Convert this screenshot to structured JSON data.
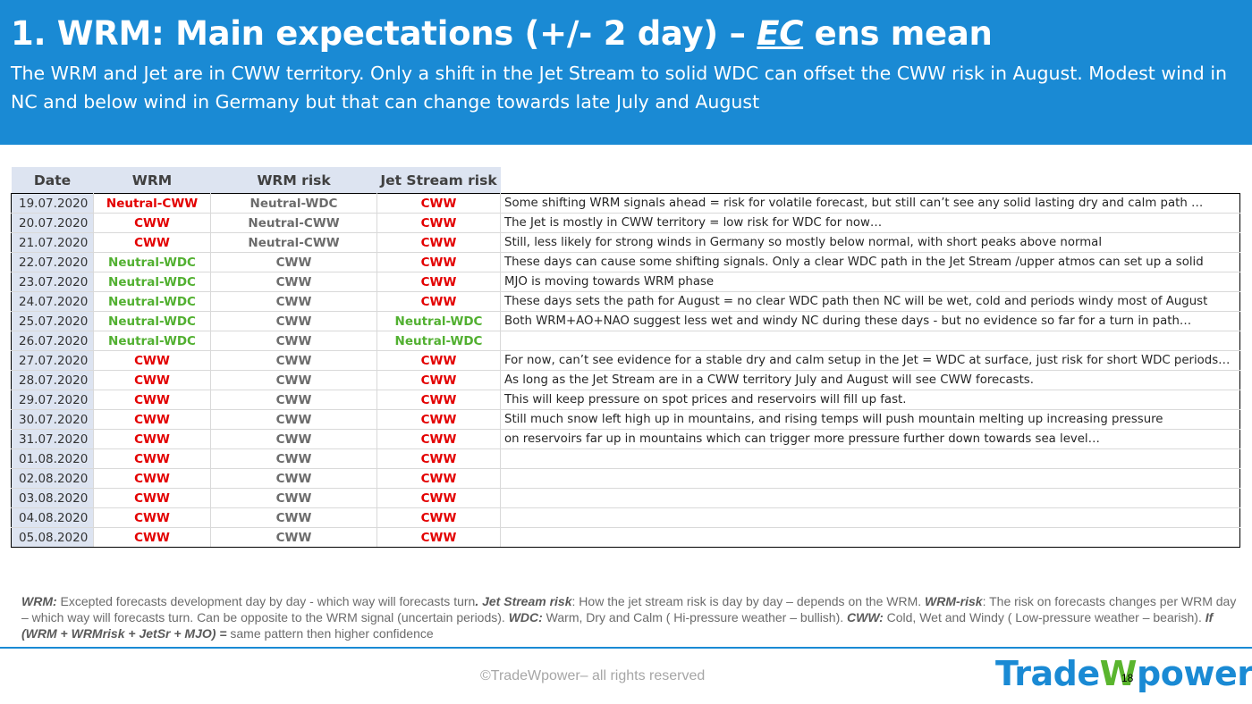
{
  "header": {
    "title_prefix": "1. WRM: Main expectations (+/- 2 day) – ",
    "title_ec": "EC",
    "title_suffix": " ens mean",
    "subtitle": "The WRM and Jet are in CWW territory. Only a shift in the Jet Stream to solid WDC can offset the CWW risk in August. Modest wind in NC and below wind in Germany but that can change towards late July and August"
  },
  "table": {
    "headers": [
      "Date",
      "WRM",
      "WRM risk",
      "Jet Stream risk"
    ],
    "rows": [
      {
        "date": "19.07.2020",
        "wrm": "Neutral-CWW",
        "wrm_c": "red",
        "risk": "Neutral-WDC",
        "risk_c": "gray",
        "jet": "CWW",
        "jet_c": "red",
        "comment": "Some shifting WRM signals ahead = risk for volatile forecast, but still can’t see any solid lasting dry and calm path …"
      },
      {
        "date": "20.07.2020",
        "wrm": "CWW",
        "wrm_c": "red",
        "risk": "Neutral-CWW",
        "risk_c": "gray",
        "jet": "CWW",
        "jet_c": "red",
        "comment": "The Jet is mostly in CWW territory = low risk for WDC for now…"
      },
      {
        "date": "21.07.2020",
        "wrm": "CWW",
        "wrm_c": "red",
        "risk": "Neutral-CWW",
        "risk_c": "gray",
        "jet": "CWW",
        "jet_c": "red",
        "comment": "Still, less likely for strong winds in Germany so mostly below normal, with short peaks above normal"
      },
      {
        "date": "22.07.2020",
        "wrm": "Neutral-WDC",
        "wrm_c": "green",
        "risk": "CWW",
        "risk_c": "gray",
        "jet": "CWW",
        "jet_c": "red",
        "comment": "These days can cause some shifting signals. Only a clear WDC path in the Jet Stream /upper atmos can set up a solid"
      },
      {
        "date": "23.07.2020",
        "wrm": "Neutral-WDC",
        "wrm_c": "green",
        "risk": "CWW",
        "risk_c": "gray",
        "jet": "CWW",
        "jet_c": "red",
        "comment": "MJO is moving towards WRM phase"
      },
      {
        "date": "24.07.2020",
        "wrm": "Neutral-WDC",
        "wrm_c": "green",
        "risk": "CWW",
        "risk_c": "gray",
        "jet": "CWW",
        "jet_c": "red",
        "comment": "These days sets the path for August = no clear WDC path then NC will be wet, cold and periods windy most of August"
      },
      {
        "date": "25.07.2020",
        "wrm": "Neutral-WDC",
        "wrm_c": "green",
        "risk": "CWW",
        "risk_c": "gray",
        "jet": "Neutral-WDC",
        "jet_c": "green",
        "comment": "Both WRM+AO+NAO suggest less wet and windy NC during these days - but no evidence so far for a turn in path…"
      },
      {
        "date": "26.07.2020",
        "wrm": "Neutral-WDC",
        "wrm_c": "green",
        "risk": "CWW",
        "risk_c": "gray",
        "jet": "Neutral-WDC",
        "jet_c": "green",
        "comment": ""
      },
      {
        "date": "27.07.2020",
        "wrm": "CWW",
        "wrm_c": "red",
        "risk": "CWW",
        "risk_c": "gray",
        "jet": "CWW",
        "jet_c": "red",
        "comment": "For now, can’t see evidence for a stable dry and calm setup in the Jet = WDC at surface, just risk for short WDC periods…"
      },
      {
        "date": "28.07.2020",
        "wrm": "CWW",
        "wrm_c": "red",
        "risk": "CWW",
        "risk_c": "gray",
        "jet": "CWW",
        "jet_c": "red",
        "comment": "As long as the Jet Stream are in a CWW territory July and August will see CWW forecasts."
      },
      {
        "date": "29.07.2020",
        "wrm": "CWW",
        "wrm_c": "red",
        "risk": "CWW",
        "risk_c": "gray",
        "jet": "CWW",
        "jet_c": "red",
        "comment": "This will keep pressure on spot prices and reservoirs will fill up fast."
      },
      {
        "date": "30.07.2020",
        "wrm": "CWW",
        "wrm_c": "red",
        "risk": "CWW",
        "risk_c": "gray",
        "jet": "CWW",
        "jet_c": "red",
        "comment": "Still much snow left high up in mountains, and rising temps will push mountain melting up increasing pressure"
      },
      {
        "date": "31.07.2020",
        "wrm": "CWW",
        "wrm_c": "red",
        "risk": "CWW",
        "risk_c": "gray",
        "jet": "CWW",
        "jet_c": "red",
        "comment": "on reservoirs far up in mountains which can trigger more pressure further down towards sea level…"
      },
      {
        "date": "01.08.2020",
        "wrm": "CWW",
        "wrm_c": "red",
        "risk": "CWW",
        "risk_c": "gray",
        "jet": "CWW",
        "jet_c": "red",
        "comment": ""
      },
      {
        "date": "02.08.2020",
        "wrm": "CWW",
        "wrm_c": "red",
        "risk": "CWW",
        "risk_c": "gray",
        "jet": "CWW",
        "jet_c": "red",
        "comment": ""
      },
      {
        "date": "03.08.2020",
        "wrm": "CWW",
        "wrm_c": "red",
        "risk": "CWW",
        "risk_c": "gray",
        "jet": "CWW",
        "jet_c": "red",
        "comment": ""
      },
      {
        "date": "04.08.2020",
        "wrm": "CWW",
        "wrm_c": "red",
        "risk": "CWW",
        "risk_c": "gray",
        "jet": "CWW",
        "jet_c": "red",
        "comment": ""
      },
      {
        "date": "05.08.2020",
        "wrm": "CWW",
        "wrm_c": "red",
        "risk": "CWW",
        "risk_c": "gray",
        "jet": "CWW",
        "jet_c": "red",
        "comment": ""
      }
    ]
  },
  "footnote": {
    "wrm_label": "WRM:",
    "wrm_text": " Excepted forecasts development day by day - which way will forecasts turn",
    "dot": ".",
    "jet_label": "  Jet Stream risk",
    "jet_text": ": How the jet stream risk is day by day – depends on the WRM. ",
    "wrmrisk_label": "WRM-risk",
    "wrmrisk_text": ": The risk on forecasts changes per WRM day – which way will forecasts turn. Can be opposite to the WRM signal (uncertain periods). ",
    "wdc_label": "WDC:",
    "wdc_text": " Warm, Dry and Calm ( Hi-pressure weather – bullish). ",
    "cww_label": "CWW:",
    "cww_text": " Cold, Wet and Windy ( Low-pressure weather – bearish). ",
    "if_label": "If (WRM + WRMrisk + JetSr + MJO) =",
    "if_text": " same pattern then higher confidence"
  },
  "footer": {
    "copyright": "©TradeWpower– all rights reserved",
    "logo_part1": "Trade",
    "logo_part2": "W",
    "logo_part3": "power",
    "page_number": "18"
  },
  "colors": {
    "header_bg": "#1a8ad4",
    "red": "#e30000",
    "green": "#52b031",
    "gray": "#6c6c6c",
    "date_bg": "#dde4f1"
  }
}
